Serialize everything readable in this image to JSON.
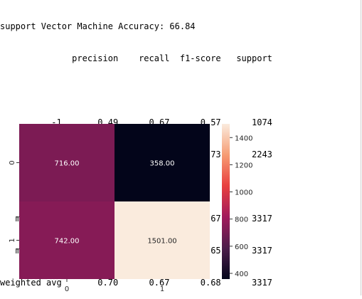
{
  "report": {
    "accuracy_line": "support Vector Machine Accuracy: 66.84",
    "header_line": "              precision    recall  f1-score   support",
    "rows": [
      "",
      "          -1       0.49      0.67      0.57      1074",
      "           1       0.81      0.67      0.73      2243",
      "",
      "   micro avg       0.67      0.67      0.67      3317",
      "   macro avg       0.65      0.67      0.65      3317",
      "weighted avg       0.70      0.67      0.68      3317"
    ]
  },
  "chart_data": {
    "type": "heatmap",
    "x_categories": [
      "0",
      "1"
    ],
    "y_categories": [
      "0",
      "1"
    ],
    "values": [
      [
        716.0,
        358.0
      ],
      [
        742.0,
        1501.0
      ]
    ],
    "cell_labels": [
      [
        "716.00",
        "358.00"
      ],
      [
        "742.00",
        "1501.00"
      ]
    ],
    "colorbar": {
      "min": 358,
      "max": 1501,
      "ticks": [
        400,
        600,
        800,
        1000,
        1200,
        1400
      ],
      "tick_labels": [
        "400",
        "600",
        "800",
        "1000",
        "1200",
        "1400"
      ]
    },
    "colormap": "rocket",
    "colors": [
      "#03051a",
      "#4c1d4b",
      "#a11a5b",
      "#e83f3f",
      "#f69c73",
      "#faebdd"
    ]
  }
}
